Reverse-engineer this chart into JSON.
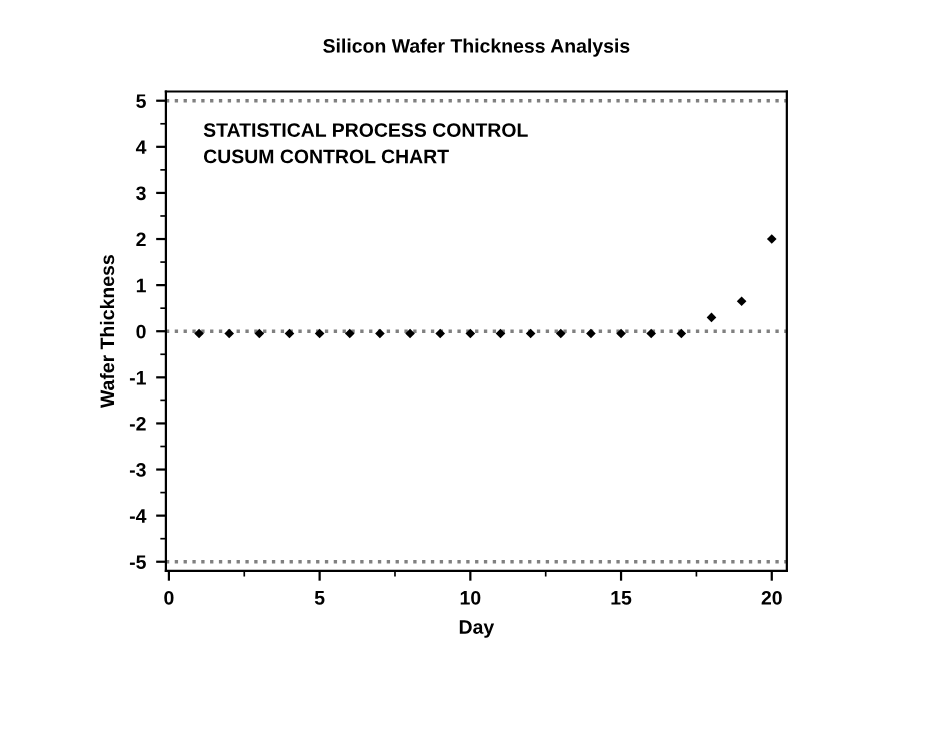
{
  "chart_data": {
    "type": "scatter",
    "title": "Silicon Wafer Thickness Analysis",
    "xlabel": "Day",
    "ylabel": "Wafer Thickness",
    "annotations": [
      "STATISTICAL PROCESS CONTROL",
      "CUSUM CONTROL CHART"
    ],
    "x": [
      1,
      2,
      3,
      4,
      5,
      6,
      7,
      8,
      9,
      10,
      11,
      12,
      13,
      14,
      15,
      16,
      17,
      18,
      19,
      20
    ],
    "series": [
      {
        "color": "#000000",
        "values": [
          -0.05,
          -0.05,
          -0.05,
          -0.05,
          -0.05,
          -0.05,
          -0.05,
          -0.05,
          -0.05,
          -0.05,
          -0.05,
          -0.05,
          -0.05,
          -0.05,
          -0.05,
          -0.05,
          -0.05,
          0.3,
          0.65,
          2.0
        ]
      }
    ],
    "marker": "diamond",
    "xlim": [
      -0.1,
      20.5
    ],
    "xticks": [
      0,
      5,
      10,
      15,
      20
    ],
    "ylim": [
      -5.2,
      5.2
    ],
    "yticks": [
      -5,
      -4,
      -3,
      -2,
      -1,
      0,
      1,
      2,
      3,
      4,
      5
    ],
    "ref_lines": [
      {
        "axis": "y",
        "value": 5,
        "color": "#808080",
        "line_style": "dotted"
      },
      {
        "axis": "y",
        "value": 0,
        "color": "#808080",
        "line_style": "dotted"
      },
      {
        "axis": "y",
        "value": -5,
        "color": "#808080",
        "line_style": "dotted"
      }
    ],
    "grid": false,
    "legend": false
  }
}
